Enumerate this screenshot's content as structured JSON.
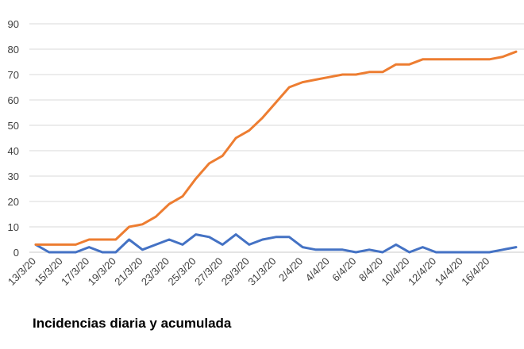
{
  "chart_data": {
    "type": "line",
    "title": "Incidencias diaria y acumulada",
    "ylim": [
      0,
      90
    ],
    "yticks": [
      0,
      10,
      20,
      30,
      40,
      50,
      60,
      70,
      80,
      90
    ],
    "grid": true,
    "x": [
      "13/3/20",
      "14/3/20",
      "15/3/20",
      "16/3/20",
      "17/3/20",
      "18/3/20",
      "19/3/20",
      "20/3/20",
      "21/3/20",
      "22/3/20",
      "23/3/20",
      "24/3/20",
      "25/3/20",
      "26/3/20",
      "27/3/20",
      "28/3/20",
      "29/3/20",
      "30/3/20",
      "31/3/20",
      "1/4/20",
      "2/4/20",
      "3/4/20",
      "4/4/20",
      "5/4/20",
      "6/4/20",
      "7/4/20",
      "8/4/20",
      "9/4/20",
      "10/4/20",
      "11/4/20",
      "12/4/20",
      "13/4/20",
      "14/4/20",
      "15/4/20",
      "16/4/20",
      "17/4/20",
      "18/4/20"
    ],
    "xtick_labels": [
      "13/3/20",
      "15/3/20",
      "17/3/20",
      "19/3/20",
      "21/3/20",
      "23/3/20",
      "25/3/20",
      "27/3/20",
      "29/3/20",
      "31/3/20",
      "2/4/20",
      "4/4/20",
      "6/4/20",
      "8/4/20",
      "10/4/20",
      "12/4/20",
      "14/4/20",
      "16/4/20"
    ],
    "series": [
      {
        "color": "#4472c4",
        "values": [
          3,
          0,
          0,
          0,
          2,
          0,
          0,
          5,
          1,
          3,
          5,
          3,
          7,
          6,
          3,
          7,
          3,
          5,
          6,
          6,
          2,
          1,
          1,
          1,
          0,
          1,
          0,
          3,
          0,
          2,
          0,
          0,
          0,
          0,
          0,
          1,
          2
        ]
      },
      {
        "color": "#ed7d31",
        "values": [
          3,
          3,
          3,
          3,
          5,
          5,
          5,
          10,
          11,
          14,
          19,
          22,
          29,
          35,
          38,
          45,
          48,
          53,
          59,
          65,
          67,
          68,
          69,
          70,
          70,
          71,
          71,
          74,
          74,
          76,
          76,
          76,
          76,
          76,
          76,
          77,
          79
        ]
      }
    ]
  }
}
